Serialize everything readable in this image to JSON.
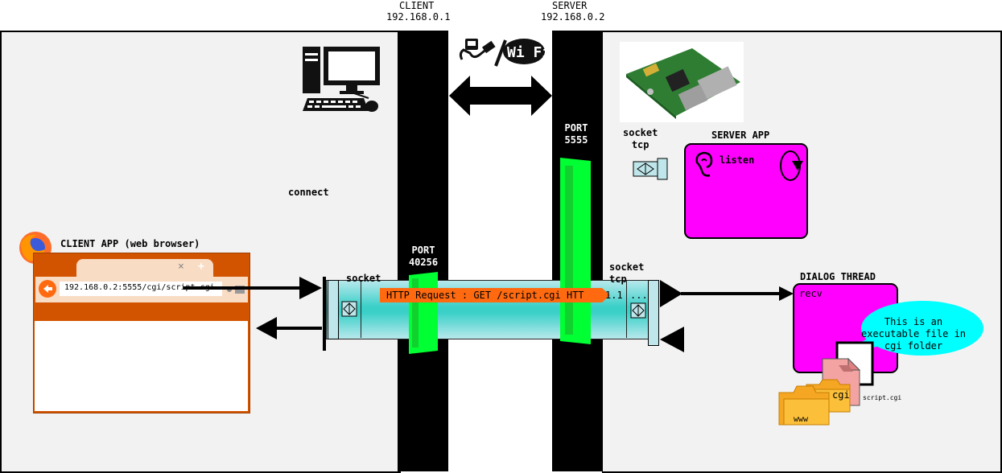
{
  "header": {
    "client_title": "CLIENT",
    "client_ip": "192.168.0.1",
    "server_title": "SERVER",
    "server_ip": "192.168.0.2"
  },
  "client": {
    "connect_label": "connect",
    "app_label": "CLIENT APP (web browser)",
    "browser": {
      "url": "192.168.0.2:5555/cgi/script.cgi",
      "tab_close": "×",
      "tab_new": "+",
      "back_icon": "back-arrow-icon"
    },
    "socket_label": "socket",
    "port_label": "PORT",
    "port_number": "40256"
  },
  "network": {
    "icons": [
      "ethernet-icon",
      "wifi-icon"
    ],
    "wifi_text": "Wi Fi"
  },
  "server": {
    "port_label": "PORT",
    "port_number": "5555",
    "listen_socket_label": "socket",
    "listen_socket_proto": "tcp",
    "app_label": "SERVER APP",
    "listen_label": "listen",
    "dialog_socket_label": "socket",
    "dialog_socket_proto": "tcp",
    "dialog_label": "DIALOG THREAD",
    "recv_label": "recv",
    "bubble_text": "This is an executable file in cgi folder",
    "file_name": "script.cgi",
    "folder_cgi": "cgi",
    "folder_www": "www"
  },
  "pipe": {
    "request_text": "HTTP Request : GET /script.cgi HTT",
    "request_tail": "1.1",
    "ellipsis": "..."
  },
  "colors": {
    "panel_bg": "#f2f2f2",
    "pipe_cyan": "#3ad0c8",
    "port_green": "#00ff33",
    "server_magenta": "#ff00ff",
    "request_orange": "#ff6a10",
    "browser_orange": "#d35400",
    "bubble_cyan": "#00ffff"
  }
}
